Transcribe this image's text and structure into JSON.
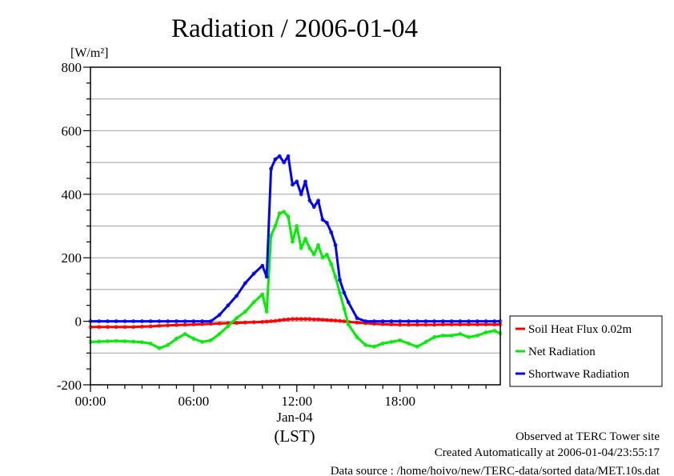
{
  "chart_data": {
    "type": "line",
    "title": "Radiation / 2006-01-04",
    "ylabel": "[W/m²]",
    "xlabel": "(LST)",
    "date_label": "Jan-04",
    "ylim": [
      -200,
      800
    ],
    "xlim": [
      0,
      23.833
    ],
    "yticks": [
      -200,
      0,
      200,
      400,
      600,
      800
    ],
    "ytick_labels": [
      "-200",
      "0",
      "200",
      "400",
      "600",
      "800"
    ],
    "xticks": [
      0,
      6,
      12,
      18
    ],
    "xtick_labels": [
      "00:00",
      "06:00",
      "12:00",
      "18:00"
    ],
    "grid": true,
    "legend_placement": "right",
    "x": [
      0,
      0.5,
      1,
      1.5,
      2,
      2.5,
      3,
      3.5,
      4,
      4.5,
      5,
      5.5,
      6,
      6.5,
      7,
      7.5,
      8,
      8.5,
      9,
      9.5,
      10,
      10.25,
      10.5,
      10.75,
      11,
      11.25,
      11.5,
      11.75,
      12,
      12.25,
      12.5,
      12.75,
      13,
      13.25,
      13.5,
      13.75,
      14,
      14.25,
      14.5,
      14.75,
      15,
      15.5,
      16,
      16.5,
      17,
      17.5,
      18,
      18.5,
      19,
      19.5,
      20,
      20.5,
      21,
      21.5,
      22,
      22.5,
      23,
      23.5,
      23.833
    ],
    "series": [
      {
        "name": "Soil Heat Flux 0.02m",
        "color": "#ff0000",
        "values": [
          -18,
          -18,
          -18,
          -18,
          -18,
          -18,
          -17,
          -16,
          -14,
          -13,
          -12,
          -11,
          -10,
          -9,
          -8,
          -7,
          -6,
          -5,
          -4,
          -3,
          -2,
          -1,
          0,
          1,
          3,
          5,
          6,
          7,
          7,
          7,
          7,
          7,
          6,
          6,
          5,
          4,
          3,
          2,
          1,
          0,
          -2,
          -4,
          -6,
          -8,
          -9,
          -10,
          -11,
          -11,
          -11,
          -11,
          -11,
          -10,
          -10,
          -10,
          -10,
          -10,
          -10,
          -10,
          -10
        ]
      },
      {
        "name": "Net Radiation",
        "color": "#00ee00",
        "values": [
          -65,
          -64,
          -63,
          -62,
          -63,
          -64,
          -66,
          -70,
          -85,
          -75,
          -55,
          -40,
          -55,
          -65,
          -60,
          -40,
          -15,
          10,
          30,
          60,
          85,
          30,
          270,
          300,
          340,
          345,
          330,
          250,
          300,
          230,
          260,
          230,
          210,
          240,
          200,
          210,
          180,
          140,
          90,
          40,
          -10,
          -50,
          -75,
          -80,
          -70,
          -65,
          -60,
          -70,
          -80,
          -65,
          -50,
          -45,
          -45,
          -40,
          -50,
          -45,
          -35,
          -30,
          -38
        ]
      },
      {
        "name": "Shortwave Radiation",
        "color": "#0000ff",
        "values": [
          0,
          0,
          0,
          0,
          0,
          0,
          0,
          0,
          0,
          0,
          0,
          0,
          0,
          0,
          0,
          20,
          50,
          80,
          120,
          150,
          175,
          140,
          480,
          510,
          520,
          500,
          520,
          430,
          440,
          400,
          440,
          380,
          360,
          380,
          320,
          310,
          280,
          240,
          130,
          90,
          60,
          10,
          0,
          0,
          0,
          0,
          0,
          0,
          0,
          0,
          0,
          0,
          0,
          0,
          0,
          0,
          0,
          0,
          0
        ]
      }
    ],
    "annotations": [
      "Observed at TERC Tower site",
      "Created Automatically at 2006-01-04/23:55:17",
      "Data source : /home/hoivo/new/TERC-data/sorted  data/MET.10s.dat"
    ]
  }
}
